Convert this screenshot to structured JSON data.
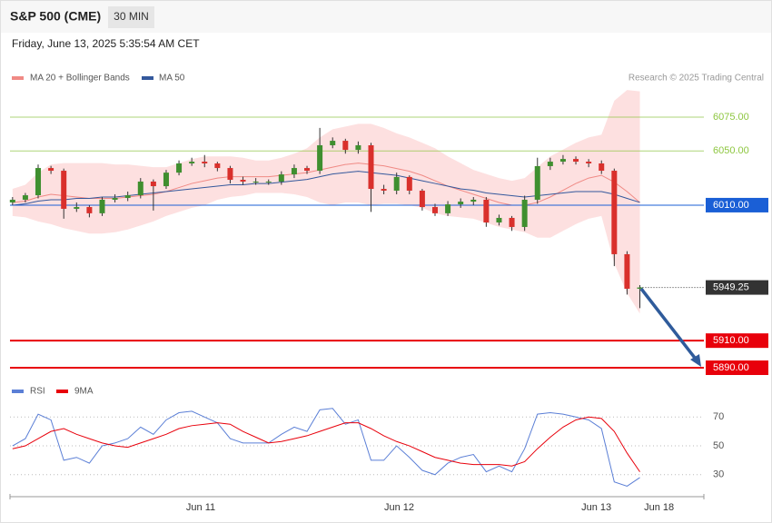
{
  "header": {
    "title": "S&P 500 (CME)",
    "interval": "30 MIN",
    "timestamp": "Friday, June 13, 2025 5:35:54 AM CET",
    "credit": "Research © 2025 Trading Central"
  },
  "chart_data": [
    {
      "type": "candlestick",
      "xlim": [
        -0.2,
        54
      ],
      "xticks": [
        {
          "value": 14.7,
          "label": "Jun 11"
        },
        {
          "value": 30.2,
          "label": "Jun 12"
        },
        {
          "value": 45.6,
          "label": "Jun 13"
        },
        {
          "value": 50.5,
          "label": "Jun 18"
        }
      ],
      "ylim": [
        5883.3,
        6094.4
      ],
      "up_color": "#3f8f2f",
      "down_color": "#d9302c",
      "open": [
        6012,
        6014,
        6017.3,
        6037.4,
        6035.4,
        6007.3,
        6008.6,
        6004,
        6014,
        6015.3,
        6017.3,
        6027.4,
        6024,
        6034,
        6040.8,
        6042.1,
        6040.8,
        6037.4,
        6028.7,
        6027.4,
        6027.4,
        6027.4,
        6032.7,
        6037.4,
        6035.4,
        6054.2,
        6057.5,
        6050.8,
        6054.2,
        6022,
        6020.7,
        6030.8,
        6020.7,
        6008.6,
        6004,
        6010.6,
        6012.6,
        6014,
        5997.2,
        6000.6,
        5993.9,
        6014,
        6038.8,
        6042.1,
        6044.1,
        6042.1,
        6040.8,
        6035.4,
        5973.8,
        5948.3
      ],
      "high": [
        6016,
        6019,
        6040,
        6039,
        6037,
        6012,
        6010,
        6016,
        6018,
        6020,
        6030,
        6029,
        6036,
        6043,
        6045,
        6047,
        6042,
        6039,
        6031,
        6030,
        6029,
        6035,
        6040,
        6039,
        6067,
        6060,
        6059,
        6057,
        6056,
        6025,
        6034,
        6032,
        6022,
        6011,
        6013,
        6015,
        6016,
        6016,
        6003,
        6002,
        6017,
        6045,
        6045,
        6047,
        6046,
        6044,
        6043,
        6037,
        5976,
        5951
      ],
      "low": [
        6010,
        6012,
        6015,
        6033,
        6000,
        6005,
        6001,
        6002,
        6012,
        6013,
        6015,
        6006,
        6022,
        6032,
        6039,
        6038,
        6035,
        6026,
        6025,
        6025,
        6025,
        6025,
        6030,
        6033,
        6033,
        6052,
        6048,
        6048,
        6005,
        6018,
        6018,
        6018,
        6006,
        6002,
        6002,
        6008,
        6010,
        5994,
        5995,
        5991,
        5991,
        6011,
        6036,
        6040,
        6040,
        6038,
        6033,
        5965,
        5944,
        5934
      ],
      "close": [
        6014,
        6017.3,
        6037.4,
        6035.4,
        6007.3,
        6008.6,
        6004,
        6014,
        6015.3,
        6017.3,
        6027.4,
        6024,
        6034,
        6040.8,
        6042.1,
        6040.8,
        6037.4,
        6028.7,
        6027.4,
        6027.4,
        6027.4,
        6032.7,
        6037.4,
        6035.4,
        6054.2,
        6057.5,
        6050.8,
        6054.2,
        6022,
        6020.7,
        6030.8,
        6020.7,
        6008.6,
        6004,
        6010.6,
        6012.6,
        6014,
        5997.2,
        6000.6,
        5993.9,
        6014,
        6038.8,
        6042.1,
        6044.1,
        6042.1,
        6040.8,
        6035.4,
        5973.8,
        5948.3,
        5949.25
      ],
      "bands": {
        "name": "MA 20 + Bollinger Bands",
        "color": "#f08a85",
        "fill": "#fde0e0",
        "ma": [
          6012,
          6013,
          6016,
          6018,
          6017,
          6016,
          6015,
          6015,
          6015,
          6016,
          6017,
          6018,
          6020,
          6023,
          6026,
          6028,
          6030,
          6031,
          6031,
          6031,
          6031,
          6032,
          6033,
          6034,
          6036,
          6038,
          6040,
          6041,
          6040,
          6039,
          6037,
          6035,
          6032,
          6028,
          6024,
          6021,
          6018,
          6015,
          6012,
          6010,
          6010,
          6012,
          6016,
          6021,
          6026,
          6030,
          6032,
          6027,
          6020,
          6012
        ],
        "upper": [
          6022,
          6025,
          6034,
          6040,
          6041,
          6041,
          6041,
          6041,
          6040,
          6040,
          6039,
          6038,
          6038,
          6041,
          6044,
          6046,
          6046,
          6046,
          6045,
          6043,
          6043,
          6045,
          6048,
          6052,
          6060,
          6066,
          6068,
          6070,
          6070,
          6067,
          6063,
          6060,
          6056,
          6052,
          6046,
          6041,
          6036,
          6033,
          6030,
          6028,
          6030,
          6038,
          6046,
          6051,
          6056,
          6060,
          6062,
          6087,
          6095,
          6094
        ],
        "lower": [
          6002,
          6001,
          5998,
          5996,
          5993,
          5991,
          5989,
          5989,
          5990,
          5992,
          5995,
          5998,
          6002,
          6005,
          6008,
          6010,
          6014,
          6016,
          6017,
          6019,
          6019,
          6019,
          6018,
          6016,
          6012,
          6010,
          6012,
          6012,
          6010,
          6011,
          6011,
          6010,
          6008,
          6004,
          6002,
          6001,
          6000,
          5997,
          5994,
          5992,
          5990,
          5986,
          5986,
          5991,
          5996,
          6000,
          6002,
          5967,
          5945,
          5930
        ]
      },
      "series": [
        {
          "name": "MA 50",
          "color": "#34589c",
          "values": [
            6010,
            6011,
            6013,
            6014,
            6014,
            6015,
            6015,
            6016,
            6016,
            6017,
            6018,
            6019,
            6020,
            6021,
            6022,
            6023,
            6024,
            6025,
            6025,
            6026,
            6026,
            6027,
            6028,
            6029,
            6031,
            6033,
            6034,
            6035,
            6034,
            6033,
            6032,
            6030,
            6028,
            6026,
            6024,
            6022,
            6021,
            6019,
            6018,
            6017,
            6016,
            6017,
            6018,
            6019,
            6020,
            6020,
            6020,
            6018,
            6015,
            6012
          ]
        }
      ],
      "levels": [
        {
          "value": 6075,
          "label": "6075.00",
          "color": "#8dc63f",
          "line": "solid",
          "box": false
        },
        {
          "value": 6050,
          "label": "6050.00",
          "color": "#8dc63f",
          "line": "solid",
          "box": false
        },
        {
          "value": 6010,
          "label": "6010.00",
          "color": "#1a5fd6",
          "line": "solid",
          "box": true
        },
        {
          "value": 5949.25,
          "label": "5949.25",
          "color": "#333333",
          "line": "dotted",
          "box": true
        },
        {
          "value": 5910,
          "label": "5910.00",
          "color": "#e8000b",
          "line": "thick",
          "box": true
        },
        {
          "value": 5890,
          "label": "5890.00",
          "color": "#e8000b",
          "line": "thick",
          "box": true
        }
      ]
    },
    {
      "type": "line",
      "ylim": [
        16,
        79
      ],
      "yticks": [
        70,
        50,
        30
      ],
      "grid": true,
      "series": [
        {
          "name": "RSI",
          "color": "#5b7fd6",
          "values": [
            50,
            55,
            72,
            68,
            40,
            42,
            38,
            50,
            52,
            55,
            63,
            58,
            68,
            73,
            74,
            70,
            66,
            55,
            52,
            52,
            52,
            58,
            63,
            60,
            75,
            76,
            65,
            68,
            40,
            40,
            50,
            42,
            33,
            30,
            38,
            42,
            44,
            32,
            36,
            32,
            48,
            72,
            73,
            72,
            70,
            68,
            62,
            25,
            22,
            28
          ]
        },
        {
          "name": "9MA",
          "color": "#e8000b",
          "values": [
            48,
            50,
            55,
            60,
            62,
            58,
            55,
            52,
            50,
            49,
            52,
            55,
            58,
            62,
            64,
            65,
            66,
            65,
            60,
            56,
            52,
            53,
            55,
            57,
            60,
            63,
            66,
            66,
            62,
            57,
            53,
            50,
            46,
            42,
            40,
            38,
            37,
            37,
            37,
            36,
            39,
            48,
            56,
            63,
            68,
            70,
            69,
            60,
            45,
            32
          ]
        }
      ]
    }
  ]
}
